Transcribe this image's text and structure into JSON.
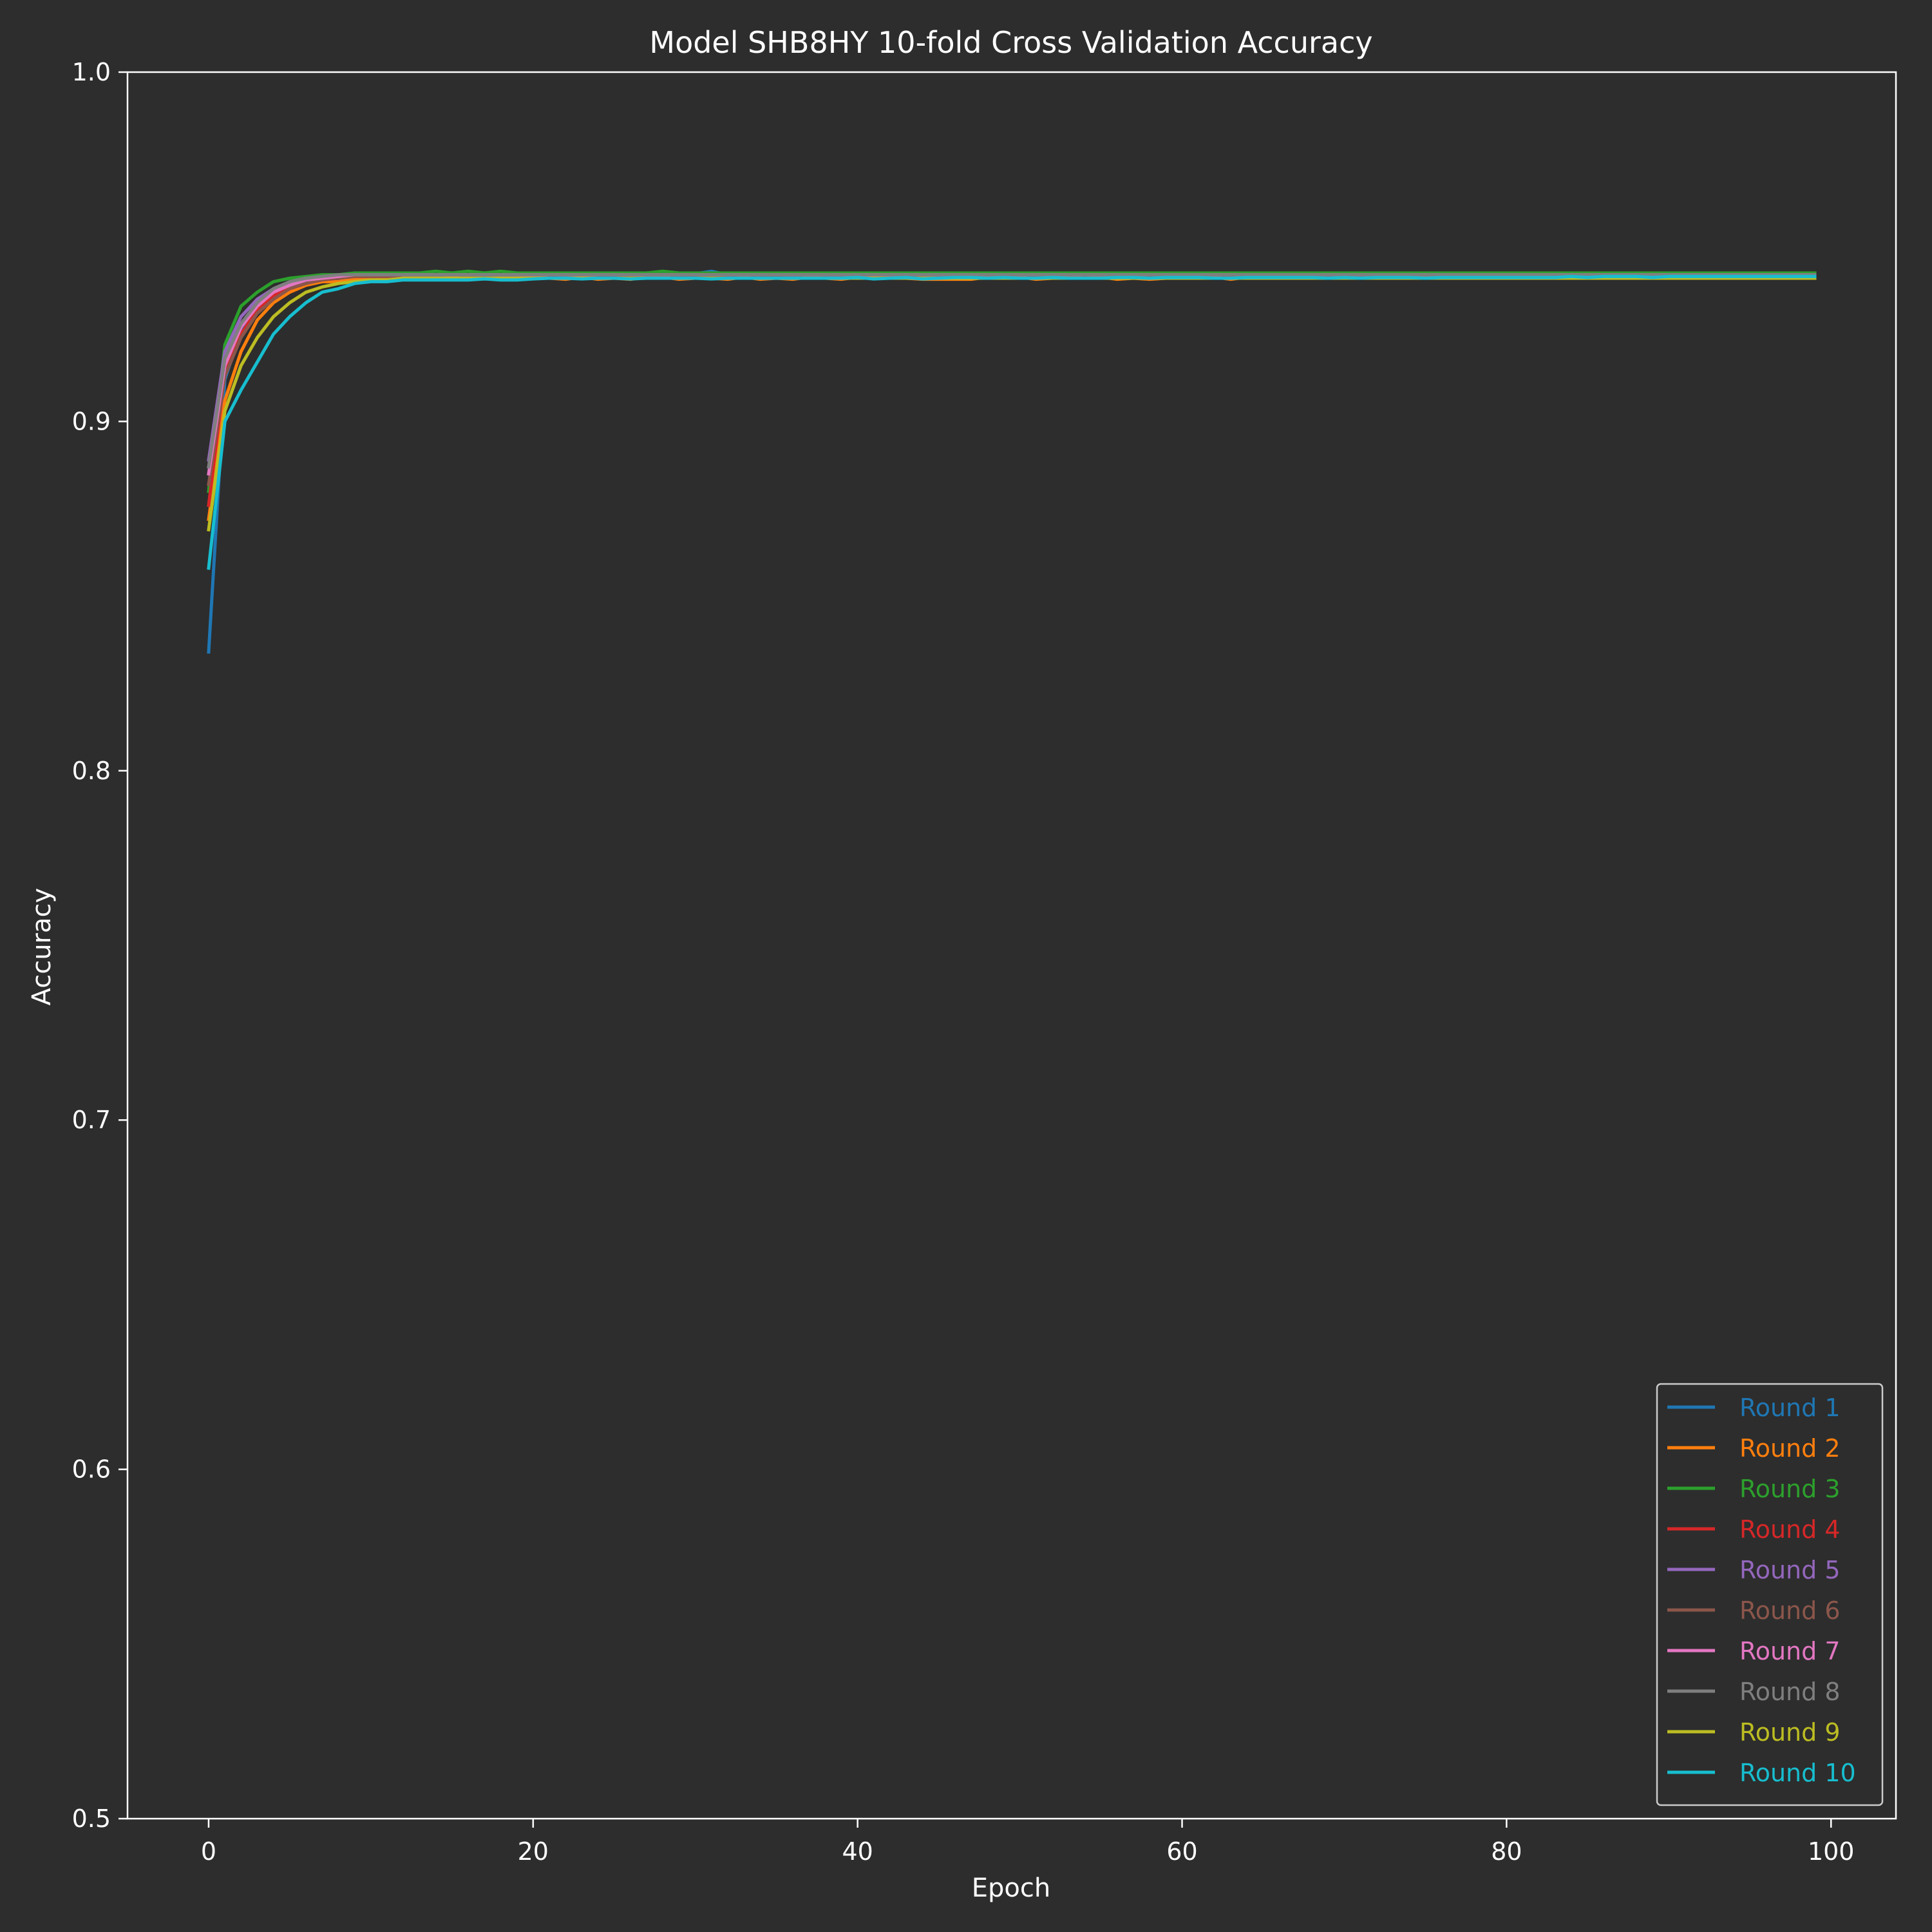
{
  "chart_data": {
    "type": "line",
    "title": "Model SHB8HY 10-fold Cross Validation Accuracy",
    "xlabel": "Epoch",
    "ylabel": "Accuracy",
    "xlim": [
      -5,
      104
    ],
    "ylim": [
      0.5,
      1.0
    ],
    "xticks": [
      0,
      20,
      40,
      60,
      80,
      100
    ],
    "yticks": [
      0.5,
      0.6,
      0.7,
      0.8,
      0.9,
      1.0
    ],
    "xtick_labels": [
      "0",
      "20",
      "40",
      "60",
      "80",
      "100"
    ],
    "ytick_labels": [
      "0.5",
      "0.6",
      "0.7",
      "0.8",
      "0.9",
      "1.0"
    ],
    "grid": false,
    "legend_position": "lower-right",
    "background": "#2d2d2d",
    "x": [
      0,
      1,
      2,
      3,
      4,
      5,
      6,
      7,
      8,
      9,
      10,
      11,
      12,
      13,
      14,
      15,
      16,
      17,
      18,
      19,
      20,
      21,
      22,
      23,
      24,
      25,
      26,
      27,
      28,
      29,
      30,
      31,
      32,
      33,
      34,
      35,
      36,
      37,
      38,
      39,
      40,
      41,
      42,
      43,
      44,
      45,
      46,
      47,
      48,
      49,
      50,
      51,
      52,
      53,
      54,
      55,
      56,
      57,
      58,
      59,
      60,
      61,
      62,
      63,
      64,
      65,
      66,
      67,
      68,
      69,
      70,
      71,
      72,
      73,
      74,
      75,
      76,
      77,
      78,
      79,
      80,
      81,
      82,
      83,
      84,
      85,
      86,
      87,
      88,
      89,
      90,
      91,
      92,
      93,
      94,
      95,
      96,
      97,
      98,
      99
    ],
    "series": [
      {
        "name": "Round 1",
        "color": "#1f77b4",
        "values": [
          0.834,
          0.912,
          0.926,
          0.933,
          0.937,
          0.939,
          0.94,
          0.941,
          0.941,
          0.941,
          0.9417,
          0.9417,
          0.9423,
          0.9417,
          0.9417,
          0.942,
          0.942,
          0.9423,
          0.9417,
          0.9417,
          0.9417,
          0.9423,
          0.9417,
          0.9417,
          0.942,
          0.9423,
          0.9423,
          0.942,
          0.9423,
          0.942,
          0.9423,
          0.943,
          0.942,
          0.942,
          0.942,
          0.9423,
          0.9417,
          0.9423,
          0.942,
          0.9417,
          0.942,
          0.9423,
          0.942,
          0.942,
          0.942,
          0.9417,
          0.942,
          0.9417,
          0.9417,
          0.942,
          0.9417,
          0.9423,
          0.9417,
          0.9417,
          0.9423,
          0.9417,
          0.942,
          0.9423,
          0.942,
          0.9423,
          0.942,
          0.9417,
          0.942,
          0.942,
          0.9423,
          0.942,
          0.942,
          0.9417,
          0.9417,
          0.942,
          0.9417,
          0.9417,
          0.9423,
          0.942,
          0.942,
          0.942,
          0.942,
          0.942,
          0.9417,
          0.942,
          0.9417,
          0.9423,
          0.942,
          0.9423,
          0.9417,
          0.942,
          0.942,
          0.9423,
          0.942,
          0.942,
          0.9423,
          0.9417,
          0.942,
          0.942,
          0.9423,
          0.9417,
          0.942,
          0.942,
          0.942,
          0.942
        ]
      },
      {
        "name": "Round 2",
        "color": "#ff7f0e",
        "values": [
          0.872,
          0.906,
          0.92,
          0.929,
          0.934,
          0.937,
          0.939,
          0.94,
          0.94,
          0.9407,
          0.9407,
          0.9413,
          0.9413,
          0.9407,
          0.9407,
          0.9413,
          0.9407,
          0.941,
          0.941,
          0.941,
          0.9413,
          0.941,
          0.9407,
          0.9413,
          0.9407,
          0.941,
          0.9407,
          0.9413,
          0.9413,
          0.9407,
          0.941,
          0.941,
          0.9407,
          0.9413,
          0.9407,
          0.941,
          0.9407,
          0.9413,
          0.941,
          0.9407,
          0.9413,
          0.9413,
          0.9413,
          0.941,
          0.9407,
          0.9407,
          0.9407,
          0.9407,
          0.9413,
          0.941,
          0.9413,
          0.9407,
          0.941,
          0.9413,
          0.941,
          0.9413,
          0.9407,
          0.941,
          0.9407,
          0.941,
          0.9413,
          0.941,
          0.9413,
          0.9407,
          0.9413,
          0.941,
          0.941,
          0.9413,
          0.941,
          0.941,
          0.941,
          0.941,
          0.9413,
          0.941,
          0.941,
          0.9413,
          0.941,
          0.941,
          0.9413,
          0.941,
          0.941,
          0.941,
          0.9413,
          0.941,
          0.9413,
          0.941,
          0.941,
          0.941,
          0.9413,
          0.941,
          0.941,
          0.9413,
          0.941,
          0.941,
          0.9413,
          0.941,
          0.941,
          0.9413,
          0.941,
          0.941
        ]
      },
      {
        "name": "Round 3",
        "color": "#2ca02c",
        "values": [
          0.88,
          0.922,
          0.933,
          0.937,
          0.94,
          0.941,
          0.9415,
          0.942,
          0.942,
          0.9425,
          0.9425,
          0.9425,
          0.9425,
          0.9425,
          0.943,
          0.9425,
          0.943,
          0.9425,
          0.943,
          0.9425,
          0.9425,
          0.9425,
          0.9425,
          0.9425,
          0.9425,
          0.9425,
          0.9425,
          0.9425,
          0.943,
          0.9425,
          0.9425,
          0.9425,
          0.9425,
          0.9425,
          0.9425,
          0.9425,
          0.9425,
          0.9425,
          0.9425,
          0.9425,
          0.9425,
          0.9425,
          0.9425,
          0.9425,
          0.9425,
          0.9425,
          0.9425,
          0.9425,
          0.9425,
          0.9425,
          0.9425,
          0.9425,
          0.9425,
          0.9425,
          0.9425,
          0.9425,
          0.9425,
          0.9425,
          0.9425,
          0.9425,
          0.9425,
          0.9425,
          0.9425,
          0.9425,
          0.9425,
          0.9425,
          0.9425,
          0.9425,
          0.9425,
          0.9425,
          0.9425,
          0.9425,
          0.9425,
          0.9425,
          0.9425,
          0.9425,
          0.9425,
          0.9425,
          0.9425,
          0.9425,
          0.9425,
          0.9425,
          0.9425,
          0.9425,
          0.9425,
          0.9425,
          0.9425,
          0.9425,
          0.9425,
          0.9425,
          0.9425,
          0.9425,
          0.9425,
          0.9425,
          0.9425,
          0.9425,
          0.9425,
          0.9425,
          0.9425,
          0.9425
        ]
      },
      {
        "name": "Round 4",
        "color": "#d62728",
        "values": [
          0.876,
          0.914,
          0.925,
          0.932,
          0.936,
          0.938,
          0.9395,
          0.9405,
          0.941,
          0.9415,
          0.9415,
          0.9415,
          0.942,
          0.942,
          0.942,
          0.942,
          0.942,
          0.942,
          0.942,
          0.942,
          0.942,
          0.942,
          0.942,
          0.942,
          0.942,
          0.942,
          0.942,
          0.942,
          0.942,
          0.942,
          0.942,
          0.942,
          0.942,
          0.942,
          0.942,
          0.942,
          0.942,
          0.942,
          0.942,
          0.942,
          0.942,
          0.942,
          0.942,
          0.942,
          0.942,
          0.942,
          0.942,
          0.942,
          0.942,
          0.942,
          0.942,
          0.942,
          0.942,
          0.942,
          0.942,
          0.942,
          0.942,
          0.942,
          0.942,
          0.942,
          0.942,
          0.942,
          0.942,
          0.942,
          0.942,
          0.942,
          0.942,
          0.942,
          0.942,
          0.942,
          0.942,
          0.942,
          0.942,
          0.942,
          0.942,
          0.942,
          0.942,
          0.942,
          0.942,
          0.942,
          0.942,
          0.942,
          0.942,
          0.942,
          0.942,
          0.942,
          0.942,
          0.942,
          0.942,
          0.942,
          0.942,
          0.942,
          0.942,
          0.942,
          0.942,
          0.942,
          0.942,
          0.942,
          0.942,
          0.942
        ]
      },
      {
        "name": "Round 5",
        "color": "#9467bd",
        "values": [
          0.889,
          0.92,
          0.93,
          0.935,
          0.938,
          0.94,
          0.941,
          0.9415,
          0.9415,
          0.942,
          0.942,
          0.942,
          0.942,
          0.942,
          0.942,
          0.942,
          0.942,
          0.942,
          0.942,
          0.942,
          0.942,
          0.942,
          0.942,
          0.942,
          0.942,
          0.942,
          0.942,
          0.942,
          0.942,
          0.942,
          0.942,
          0.942,
          0.942,
          0.942,
          0.942,
          0.942,
          0.942,
          0.942,
          0.942,
          0.942,
          0.942,
          0.942,
          0.942,
          0.942,
          0.942,
          0.942,
          0.942,
          0.942,
          0.942,
          0.942,
          0.942,
          0.942,
          0.942,
          0.942,
          0.942,
          0.942,
          0.942,
          0.942,
          0.942,
          0.942,
          0.942,
          0.942,
          0.942,
          0.942,
          0.942,
          0.942,
          0.942,
          0.942,
          0.942,
          0.942,
          0.942,
          0.942,
          0.942,
          0.942,
          0.942,
          0.942,
          0.942,
          0.942,
          0.942,
          0.942,
          0.942,
          0.942,
          0.942,
          0.942,
          0.942,
          0.942,
          0.942,
          0.942,
          0.942,
          0.942,
          0.942,
          0.942,
          0.942,
          0.942,
          0.942,
          0.942,
          0.942,
          0.942,
          0.942,
          0.942
        ]
      },
      {
        "name": "Round 6",
        "color": "#8c564b",
        "values": [
          0.882,
          0.913,
          0.924,
          0.931,
          0.935,
          0.938,
          0.9395,
          0.9405,
          0.941,
          0.9415,
          0.9415,
          0.9415,
          0.9415,
          0.9415,
          0.942,
          0.942,
          0.942,
          0.942,
          0.942,
          0.942,
          0.942,
          0.942,
          0.942,
          0.942,
          0.942,
          0.942,
          0.942,
          0.942,
          0.942,
          0.942,
          0.942,
          0.942,
          0.942,
          0.942,
          0.942,
          0.942,
          0.942,
          0.942,
          0.942,
          0.942,
          0.942,
          0.942,
          0.942,
          0.942,
          0.942,
          0.942,
          0.942,
          0.942,
          0.942,
          0.942,
          0.942,
          0.942,
          0.942,
          0.942,
          0.942,
          0.942,
          0.942,
          0.942,
          0.942,
          0.942,
          0.942,
          0.942,
          0.942,
          0.942,
          0.942,
          0.942,
          0.942,
          0.942,
          0.942,
          0.942,
          0.942,
          0.942,
          0.942,
          0.942,
          0.942,
          0.942,
          0.942,
          0.942,
          0.942,
          0.942,
          0.942,
          0.942,
          0.942,
          0.942,
          0.942,
          0.942,
          0.942,
          0.942,
          0.942,
          0.942,
          0.942,
          0.942,
          0.942,
          0.942,
          0.942,
          0.942,
          0.942,
          0.942,
          0.942,
          0.942
        ]
      },
      {
        "name": "Round 7",
        "color": "#e377c2",
        "values": [
          0.885,
          0.916,
          0.927,
          0.933,
          0.937,
          0.939,
          0.9405,
          0.941,
          0.9415,
          0.942,
          0.942,
          0.942,
          0.942,
          0.942,
          0.942,
          0.942,
          0.942,
          0.942,
          0.942,
          0.942,
          0.942,
          0.942,
          0.942,
          0.942,
          0.942,
          0.942,
          0.942,
          0.942,
          0.942,
          0.942,
          0.942,
          0.942,
          0.942,
          0.942,
          0.942,
          0.942,
          0.942,
          0.942,
          0.942,
          0.942,
          0.942,
          0.942,
          0.942,
          0.942,
          0.942,
          0.942,
          0.942,
          0.942,
          0.942,
          0.942,
          0.942,
          0.942,
          0.942,
          0.942,
          0.942,
          0.942,
          0.942,
          0.942,
          0.942,
          0.942,
          0.942,
          0.942,
          0.942,
          0.942,
          0.942,
          0.942,
          0.942,
          0.942,
          0.942,
          0.942,
          0.942,
          0.942,
          0.942,
          0.942,
          0.942,
          0.942,
          0.942,
          0.942,
          0.942,
          0.942,
          0.942,
          0.942,
          0.942,
          0.942,
          0.942,
          0.942,
          0.942,
          0.942,
          0.942,
          0.942,
          0.942,
          0.942,
          0.942,
          0.942,
          0.942,
          0.942,
          0.942,
          0.942,
          0.942,
          0.942
        ]
      },
      {
        "name": "Round 8",
        "color": "#7f7f7f",
        "values": [
          0.887,
          0.918,
          0.928,
          0.934,
          0.938,
          0.94,
          0.941,
          0.9415,
          0.942,
          0.942,
          0.942,
          0.942,
          0.942,
          0.942,
          0.942,
          0.942,
          0.942,
          0.942,
          0.942,
          0.942,
          0.942,
          0.942,
          0.942,
          0.942,
          0.942,
          0.942,
          0.942,
          0.942,
          0.942,
          0.942,
          0.942,
          0.942,
          0.942,
          0.942,
          0.942,
          0.942,
          0.942,
          0.942,
          0.942,
          0.942,
          0.942,
          0.942,
          0.942,
          0.942,
          0.942,
          0.942,
          0.942,
          0.942,
          0.942,
          0.942,
          0.942,
          0.942,
          0.942,
          0.942,
          0.942,
          0.942,
          0.942,
          0.942,
          0.942,
          0.942,
          0.942,
          0.942,
          0.942,
          0.942,
          0.942,
          0.942,
          0.942,
          0.942,
          0.942,
          0.942,
          0.942,
          0.942,
          0.942,
          0.942,
          0.942,
          0.942,
          0.942,
          0.942,
          0.942,
          0.942,
          0.942,
          0.942,
          0.942,
          0.942,
          0.942,
          0.942,
          0.942,
          0.942,
          0.942,
          0.942,
          0.942,
          0.942,
          0.942,
          0.942,
          0.942,
          0.942,
          0.942,
          0.942,
          0.942,
          0.942
        ]
      },
      {
        "name": "Round 9",
        "color": "#bcbd22",
        "values": [
          0.869,
          0.903,
          0.916,
          0.924,
          0.93,
          0.934,
          0.937,
          0.9385,
          0.9395,
          0.94,
          0.9405,
          0.9405,
          0.941,
          0.941,
          0.941,
          0.941,
          0.941,
          0.941,
          0.941,
          0.941,
          0.941,
          0.941,
          0.941,
          0.941,
          0.941,
          0.941,
          0.941,
          0.941,
          0.941,
          0.941,
          0.941,
          0.941,
          0.941,
          0.941,
          0.941,
          0.941,
          0.941,
          0.941,
          0.941,
          0.941,
          0.941,
          0.941,
          0.941,
          0.941,
          0.941,
          0.941,
          0.941,
          0.941,
          0.941,
          0.941,
          0.941,
          0.941,
          0.941,
          0.941,
          0.941,
          0.941,
          0.941,
          0.941,
          0.941,
          0.941,
          0.941,
          0.941,
          0.941,
          0.941,
          0.941,
          0.941,
          0.941,
          0.941,
          0.941,
          0.941,
          0.941,
          0.941,
          0.941,
          0.941,
          0.941,
          0.941,
          0.941,
          0.941,
          0.941,
          0.941,
          0.941,
          0.941,
          0.941,
          0.941,
          0.941,
          0.941,
          0.941,
          0.941,
          0.941,
          0.941,
          0.941,
          0.941,
          0.941,
          0.941,
          0.941,
          0.941,
          0.941,
          0.941,
          0.941,
          0.941
        ]
      },
      {
        "name": "Round 10",
        "color": "#17becf",
        "values": [
          0.858,
          0.9,
          0.909,
          0.917,
          0.925,
          0.93,
          0.934,
          0.937,
          0.938,
          0.9395,
          0.94,
          0.94,
          0.9405,
          0.9405,
          0.9405,
          0.9405,
          0.9405,
          0.9408,
          0.9405,
          0.9405,
          0.9408,
          0.941,
          0.941,
          0.9408,
          0.941,
          0.941,
          0.9408,
          0.941,
          0.941,
          0.941,
          0.941,
          0.9408,
          0.941,
          0.941,
          0.941,
          0.941,
          0.941,
          0.941,
          0.941,
          0.941,
          0.9412,
          0.9408,
          0.941,
          0.9412,
          0.9408,
          0.941,
          0.9412,
          0.9412,
          0.941,
          0.9412,
          0.941,
          0.941,
          0.9412,
          0.941,
          0.941,
          0.941,
          0.9412,
          0.9412,
          0.941,
          0.9412,
          0.9412,
          0.9412,
          0.941,
          0.941,
          0.9412,
          0.9412,
          0.9412,
          0.9412,
          0.9412,
          0.941,
          0.9412,
          0.941,
          0.9412,
          0.9412,
          0.9412,
          0.941,
          0.9412,
          0.9412,
          0.9412,
          0.9412,
          0.9412,
          0.9412,
          0.9412,
          0.9412,
          0.9415,
          0.9412,
          0.9415,
          0.9415,
          0.9415,
          0.9412,
          0.9415,
          0.9415,
          0.9415,
          0.9415,
          0.9415,
          0.9415,
          0.9415,
          0.9415,
          0.9415,
          0.9415
        ]
      }
    ]
  }
}
